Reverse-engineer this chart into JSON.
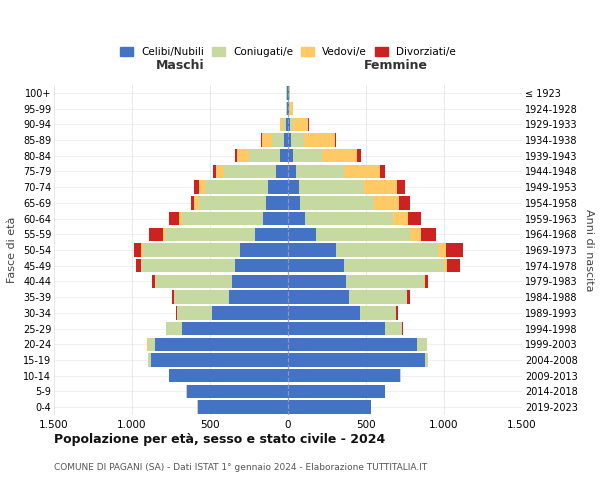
{
  "age_groups": [
    "0-4",
    "5-9",
    "10-14",
    "15-19",
    "20-24",
    "25-29",
    "30-34",
    "35-39",
    "40-44",
    "45-49",
    "50-54",
    "55-59",
    "60-64",
    "65-69",
    "70-74",
    "75-79",
    "80-84",
    "85-89",
    "90-94",
    "95-99",
    "100+"
  ],
  "birth_years": [
    "2019-2023",
    "2014-2018",
    "2009-2013",
    "2004-2008",
    "1999-2003",
    "1994-1998",
    "1989-1993",
    "1984-1988",
    "1979-1983",
    "1974-1978",
    "1969-1973",
    "1964-1968",
    "1959-1963",
    "1954-1958",
    "1949-1953",
    "1944-1948",
    "1939-1943",
    "1934-1938",
    "1929-1933",
    "1924-1928",
    "≤ 1923"
  ],
  "maschi": {
    "celibi": [
      580,
      650,
      760,
      880,
      850,
      680,
      490,
      380,
      360,
      340,
      310,
      210,
      160,
      140,
      130,
      80,
      50,
      25,
      10,
      5,
      5
    ],
    "coniugati": [
      2,
      2,
      5,
      20,
      50,
      100,
      220,
      350,
      490,
      600,
      620,
      580,
      520,
      430,
      400,
      330,
      200,
      80,
      20,
      5,
      5
    ],
    "vedovi": [
      0,
      0,
      0,
      0,
      2,
      1,
      1,
      1,
      2,
      5,
      10,
      10,
      20,
      30,
      40,
      50,
      80,
      60,
      20,
      5,
      2
    ],
    "divorziati": [
      0,
      0,
      0,
      0,
      2,
      2,
      5,
      10,
      20,
      30,
      50,
      90,
      60,
      20,
      30,
      20,
      10,
      5,
      2,
      0,
      0
    ]
  },
  "femmine": {
    "nubili": [
      530,
      620,
      720,
      880,
      830,
      620,
      460,
      390,
      370,
      360,
      310,
      180,
      110,
      80,
      70,
      50,
      35,
      20,
      10,
      5,
      5
    ],
    "coniugate": [
      2,
      2,
      5,
      20,
      60,
      110,
      230,
      370,
      500,
      640,
      650,
      600,
      560,
      470,
      420,
      310,
      180,
      80,
      20,
      5,
      5
    ],
    "vedove": [
      0,
      0,
      0,
      0,
      2,
      2,
      5,
      5,
      10,
      20,
      50,
      70,
      100,
      160,
      210,
      230,
      230,
      200,
      100,
      20,
      5
    ],
    "divorziate": [
      0,
      0,
      0,
      0,
      2,
      5,
      10,
      20,
      20,
      80,
      110,
      100,
      80,
      70,
      50,
      30,
      20,
      5,
      2,
      0,
      0
    ]
  },
  "colors": {
    "celibi_nubili": "#4472c4",
    "coniugati_e": "#c5d9a0",
    "vedovi_e": "#ffc966",
    "divorziati_e": "#cc2222"
  },
  "title": "Popolazione per età, sesso e stato civile - 2024",
  "subtitle": "COMUNE DI PAGANI (SA) - Dati ISTAT 1° gennaio 2024 - Elaborazione TUTTITALIA.IT",
  "xlabel_left": "Maschi",
  "xlabel_right": "Femmine",
  "ylabel_left": "Fasce di età",
  "ylabel_right": "Anni di nascita",
  "xlim": 1500,
  "xticks": [
    -1500,
    -1000,
    -500,
    0,
    500,
    1000,
    1500
  ],
  "legend_labels": [
    "Celibi/Nubili",
    "Coniugati/e",
    "Vedovi/e",
    "Divorziati/e"
  ],
  "background_color": "#ffffff",
  "grid_color": "#cccccc"
}
